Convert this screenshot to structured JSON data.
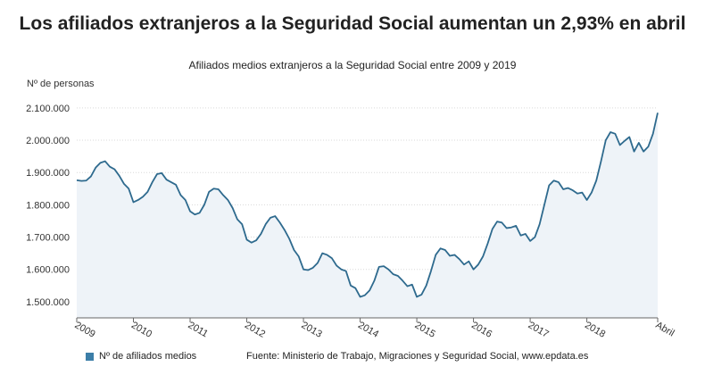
{
  "title": "Los afiliados extranjeros a la Seguridad Social aumentan un 2,93% en abril",
  "subtitle": "Afiliados medios extranjeros a la Seguridad Social entre 2009 y 2019",
  "footer": {
    "legend_label": "Nº de afiliados medios",
    "source": "Fuente: Ministerio de Trabajo, Migraciones y Seguridad Social, www.epdata.es"
  },
  "colors": {
    "line": "#2e6a8e",
    "area": "#eef3f8",
    "legend": "#3c7ea8",
    "grid": "#d9d9d9"
  },
  "chart_data": {
    "type": "area",
    "title": "Afiliados medios extranjeros a la Seguridad Social entre 2009 y 2019",
    "xlabel": "",
    "ylabel": "Nº de personas",
    "ylim": [
      1450000,
      2130000
    ],
    "yticks": [
      1500000,
      1600000,
      1700000,
      1800000,
      1900000,
      2000000,
      2100000
    ],
    "ytick_labels": [
      "1.500.000",
      "1.600.000",
      "1.700.000",
      "1.800.000",
      "1.900.000",
      "2.000.000",
      "2.100.000"
    ],
    "xtick_labels": [
      "2009",
      "2010",
      "2011",
      "2012",
      "2013",
      "2014",
      "2015",
      "2016",
      "2017",
      "2018",
      "Abril"
    ],
    "grid": true,
    "legend": "bottom-left",
    "series": [
      {
        "name": "Nº de afiliados medios",
        "values": [
          1876000,
          1874000,
          1875000,
          1888000,
          1915000,
          1930000,
          1935000,
          1918000,
          1910000,
          1890000,
          1865000,
          1850000,
          1808000,
          1815000,
          1825000,
          1840000,
          1870000,
          1895000,
          1898000,
          1878000,
          1870000,
          1862000,
          1830000,
          1815000,
          1780000,
          1770000,
          1775000,
          1800000,
          1840000,
          1850000,
          1848000,
          1830000,
          1815000,
          1790000,
          1755000,
          1740000,
          1692000,
          1683000,
          1690000,
          1710000,
          1740000,
          1760000,
          1765000,
          1745000,
          1722000,
          1695000,
          1660000,
          1640000,
          1600000,
          1598000,
          1605000,
          1620000,
          1650000,
          1645000,
          1635000,
          1612000,
          1600000,
          1595000,
          1550000,
          1542000,
          1515000,
          1520000,
          1535000,
          1565000,
          1608000,
          1610000,
          1600000,
          1585000,
          1580000,
          1565000,
          1548000,
          1553000,
          1515000,
          1522000,
          1550000,
          1595000,
          1645000,
          1665000,
          1660000,
          1642000,
          1645000,
          1632000,
          1615000,
          1625000,
          1600000,
          1615000,
          1640000,
          1680000,
          1725000,
          1748000,
          1745000,
          1728000,
          1730000,
          1735000,
          1705000,
          1710000,
          1688000,
          1700000,
          1740000,
          1800000,
          1860000,
          1875000,
          1870000,
          1848000,
          1852000,
          1845000,
          1835000,
          1838000,
          1815000,
          1838000,
          1875000,
          1935000,
          2000000,
          2025000,
          2020000,
          1985000,
          1998000,
          2010000,
          1965000,
          1992000,
          1965000,
          1980000,
          2020000,
          2085000
        ]
      }
    ]
  }
}
